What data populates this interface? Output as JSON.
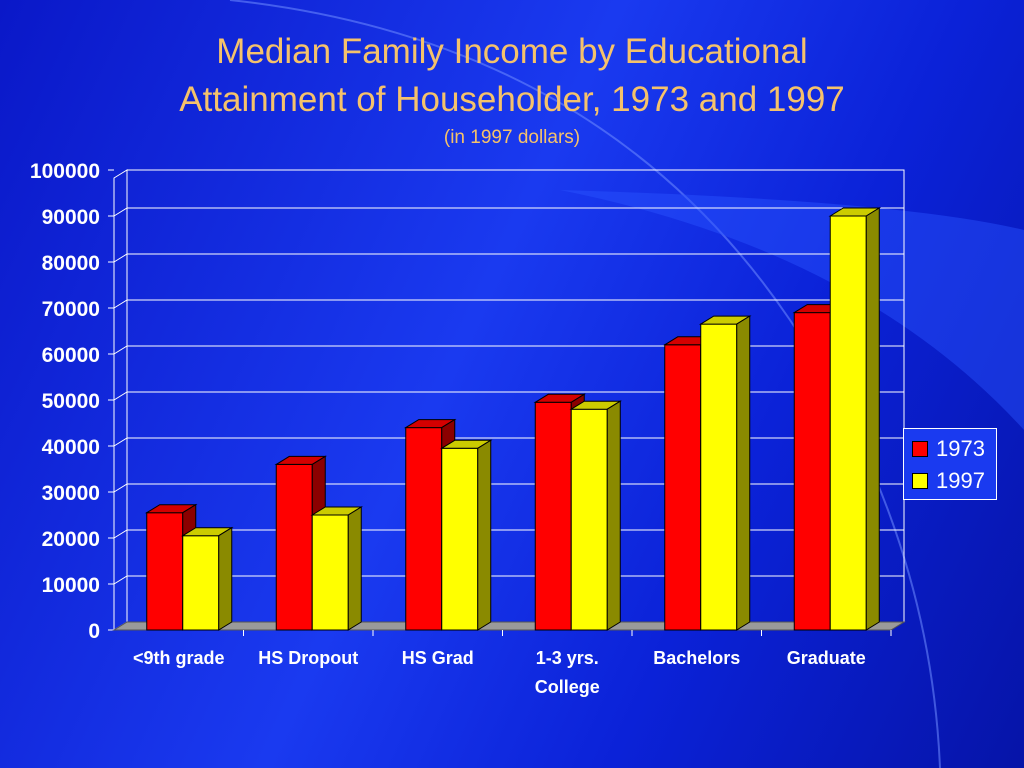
{
  "title_line1": "Median Family Income by Educational",
  "title_line2": "Attainment of Householder, 1973 and 1997",
  "subtitle": "(in 1997 dollars)",
  "colors": {
    "background": "#1a3af0",
    "title": "#f5c26b",
    "axis": "#ffffff",
    "series_1973": "#ff0000",
    "series_1997": "#ffff00"
  },
  "chart_data": {
    "type": "bar",
    "categories": [
      [
        "<9th grade"
      ],
      [
        "HS Dropout"
      ],
      [
        "HS Grad"
      ],
      [
        "1-3 yrs.",
        "College"
      ],
      [
        "Bachelors"
      ],
      [
        "Graduate"
      ]
    ],
    "series": [
      {
        "name": "1973",
        "values": [
          25500,
          36000,
          44000,
          49500,
          62000,
          69000
        ]
      },
      {
        "name": "1997",
        "values": [
          20500,
          25000,
          39500,
          48000,
          66500,
          90000
        ]
      }
    ],
    "ylim": [
      0,
      100000
    ],
    "yticks": [
      0,
      10000,
      20000,
      30000,
      40000,
      50000,
      60000,
      70000,
      80000,
      90000,
      100000
    ],
    "grid": true,
    "legend": "right",
    "style": "3d-clustered-column"
  }
}
